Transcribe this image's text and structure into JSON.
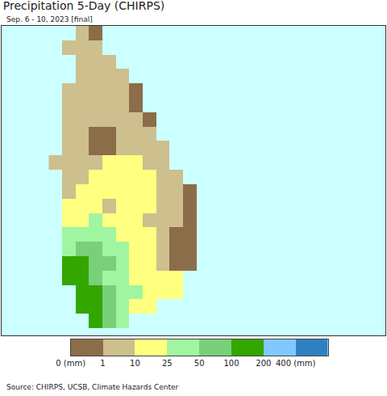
{
  "chart_data": {
    "type": "heatmap",
    "title": "Precipitation 5-Day (CHIRPS)",
    "subtitle": "Sep. 6 - 10, 2023 [final]",
    "source": "Source: CHIRPS, UCSB, Climate Hazards Center",
    "x": [
      79.7,
      79.9,
      80.1,
      80.3,
      80.5,
      80.7,
      80.9,
      81.1,
      81.3,
      81.5,
      81.7,
      81.9
    ],
    "y": [
      9.9,
      9.7,
      9.5,
      9.3,
      9.1,
      8.9,
      8.7,
      8.5,
      8.3,
      8.1,
      7.9,
      7.7,
      7.5,
      7.3,
      7.1,
      6.9,
      6.7,
      6.5,
      6.3,
      6.1,
      5.9
    ],
    "cells": [
      [
        null,
        null,
        5,
        0.5,
        null,
        null,
        null,
        null,
        null,
        null,
        null,
        null
      ],
      [
        null,
        5,
        5,
        5,
        null,
        null,
        null,
        null,
        null,
        null,
        null,
        null
      ],
      [
        null,
        null,
        5,
        5,
        5,
        null,
        null,
        null,
        null,
        null,
        null,
        null
      ],
      [
        null,
        null,
        5,
        5,
        5,
        5,
        null,
        null,
        null,
        null,
        null,
        null
      ],
      [
        null,
        5,
        5,
        5,
        5,
        5,
        0.5,
        null,
        null,
        null,
        null,
        null
      ],
      [
        null,
        5,
        5,
        5,
        5,
        5,
        0.5,
        null,
        null,
        null,
        null,
        null
      ],
      [
        null,
        5,
        5,
        5,
        5,
        5,
        5,
        0.5,
        null,
        null,
        null,
        null
      ],
      [
        null,
        5,
        5,
        0.5,
        0.5,
        5,
        5,
        5,
        null,
        null,
        null,
        null
      ],
      [
        null,
        5,
        5,
        0.5,
        0.5,
        5,
        5,
        5,
        5,
        null,
        null,
        null
      ],
      [
        5,
        5,
        5,
        5,
        15,
        15,
        15,
        5,
        5,
        null,
        null,
        null
      ],
      [
        null,
        5,
        5,
        15,
        15,
        15,
        15,
        15,
        5,
        5,
        null,
        null
      ],
      [
        null,
        5,
        15,
        15,
        15,
        15,
        15,
        15,
        5,
        5,
        0.5,
        null
      ],
      [
        null,
        15,
        15,
        15,
        5,
        15,
        15,
        15,
        5,
        5,
        0.5,
        null
      ],
      [
        null,
        15,
        15,
        35,
        15,
        15,
        15,
        5,
        5,
        5,
        0.5,
        null
      ],
      [
        null,
        35,
        35,
        35,
        35,
        15,
        15,
        15,
        5,
        0.5,
        0.5,
        null
      ],
      [
        null,
        35,
        70,
        70,
        35,
        35,
        15,
        15,
        5,
        0.5,
        0.5,
        null
      ],
      [
        null,
        150,
        150,
        70,
        70,
        35,
        15,
        15,
        5,
        0.5,
        0.5,
        null
      ],
      [
        null,
        150,
        150,
        70,
        35,
        35,
        15,
        15,
        15,
        15,
        null,
        null
      ],
      [
        null,
        null,
        150,
        150,
        70,
        35,
        35,
        15,
        15,
        15,
        null,
        null
      ],
      [
        null,
        null,
        150,
        150,
        70,
        35,
        15,
        15,
        null,
        null,
        null,
        null
      ],
      [
        null,
        null,
        null,
        150,
        70,
        35,
        null,
        null,
        null,
        null,
        null,
        null
      ]
    ],
    "xlim": [
      78.9,
      84.6
    ],
    "ylim": [
      5.7,
      10.0
    ],
    "tick_labels": false,
    "grid": false,
    "colorbar": {
      "ticks": [
        {
          "value": 0,
          "label": "0 (mm)"
        },
        1,
        10,
        25,
        50,
        100,
        200,
        {
          "value": 400,
          "label": "400 (mm)"
        }
      ],
      "colors": [
        "#8c6d4a",
        "#cdbf8e",
        "#ffff80",
        "#a0f5a0",
        "#78d078",
        "#33a600",
        "#80c8ff",
        "#2f80c0"
      ]
    }
  }
}
